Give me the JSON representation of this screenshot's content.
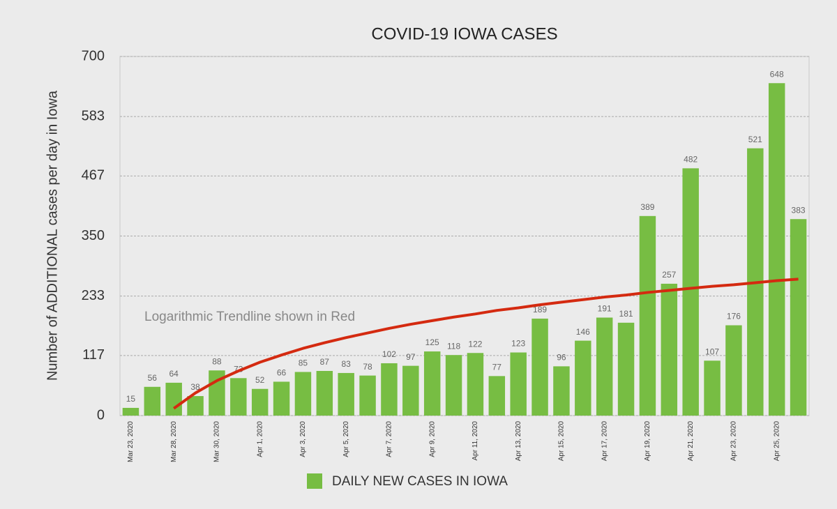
{
  "chart_data": {
    "type": "bar",
    "title": "COVID-19 IOWA CASES",
    "y_label": "Number of ADDITIONAL cases per day in Iowa",
    "annotation": "Logarithmic Trendline shown in Red",
    "categories": [
      "Mar 23, 2020",
      null,
      "Mar 28, 2020",
      null,
      "Mar 30, 2020",
      null,
      "Apr 1, 2020",
      null,
      "Apr 3, 2020",
      null,
      "Apr 5, 2020",
      null,
      "Apr 7, 2020",
      null,
      "Apr 9, 2020",
      null,
      "Apr 11, 2020",
      null,
      "Apr 13, 2020",
      null,
      "Apr 15, 2020",
      null,
      "Apr 17, 2020",
      null,
      "Apr 19, 2020",
      null,
      "Apr 21, 2020",
      null,
      "Apr 23, 2020",
      null,
      "Apr 25, 2020",
      null
    ],
    "series": [
      {
        "name": "DAILY NEW CASES IN IOWA",
        "color": "#77bd43",
        "values": [
          15,
          56,
          64,
          38,
          88,
          73,
          52,
          66,
          85,
          87,
          83,
          78,
          102,
          97,
          125,
          118,
          122,
          77,
          123,
          189,
          96,
          146,
          191,
          181,
          389,
          257,
          482,
          107,
          176,
          521,
          648,
          383
        ]
      }
    ],
    "trendline": {
      "color": "#d42a10",
      "values": [
        null,
        null,
        14,
        44,
        68,
        87,
        104,
        118,
        131,
        142,
        152,
        161,
        170,
        178,
        185,
        192,
        198,
        205,
        210,
        216,
        221,
        226,
        231,
        235,
        240,
        244,
        248,
        252,
        255,
        259,
        263,
        266
      ]
    },
    "ylim": [
      0,
      700
    ],
    "yticks": [
      0,
      117,
      233,
      350,
      467,
      583,
      700
    ],
    "grid": true
  }
}
